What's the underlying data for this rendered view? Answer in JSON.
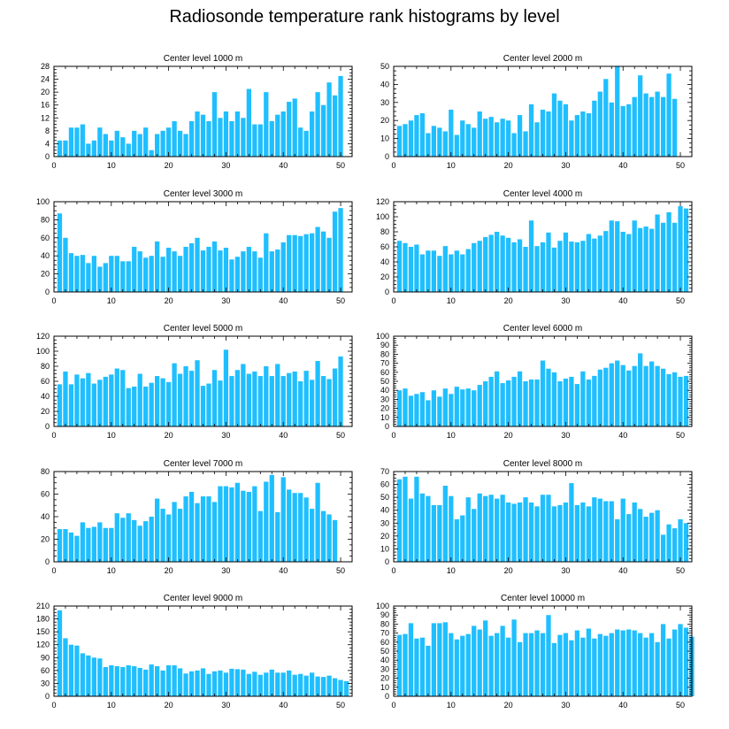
{
  "title": "Radiosonde temperature rank histograms by level",
  "colors": {
    "bar": "#1fbfff",
    "axis": "#000000",
    "background": "#ffffff"
  },
  "chart_data": [
    {
      "type": "bar",
      "title": "Center level 1000 m",
      "xlim": [
        0,
        52
      ],
      "ylim": [
        0,
        28
      ],
      "xticks": [
        0,
        10,
        20,
        30,
        40,
        50
      ],
      "yticks": [
        0,
        4,
        8,
        12,
        16,
        20,
        24,
        28
      ],
      "values": [
        5,
        5,
        9,
        9,
        10,
        4,
        5,
        9,
        7,
        5,
        8,
        6,
        4,
        8,
        7,
        9,
        2,
        7,
        8,
        9,
        11,
        8,
        7,
        11,
        14,
        13,
        11,
        20,
        12,
        14,
        11,
        14,
        12,
        21,
        10,
        10,
        20,
        11,
        13,
        14,
        17,
        18,
        9,
        8,
        14,
        20,
        16,
        23,
        19,
        25
      ]
    },
    {
      "type": "bar",
      "title": "Center level 2000 m",
      "xlim": [
        0,
        52
      ],
      "ylim": [
        0,
        50
      ],
      "xticks": [
        0,
        10,
        20,
        30,
        40,
        50
      ],
      "yticks": [
        0,
        10,
        20,
        30,
        40,
        50
      ],
      "values": [
        17,
        18,
        20,
        23,
        24,
        13,
        17,
        16,
        14,
        26,
        12,
        20,
        18,
        16,
        25,
        21,
        22,
        19,
        21,
        20,
        13,
        23,
        14,
        29,
        19,
        26,
        25,
        35,
        31,
        29,
        20,
        23,
        25,
        24,
        31,
        36,
        43,
        30,
        50,
        28,
        29,
        33,
        45,
        35,
        33,
        36,
        33,
        46,
        32
      ]
    },
    {
      "type": "bar",
      "title": "Center level 3000 m",
      "xlim": [
        0,
        52
      ],
      "ylim": [
        0,
        100
      ],
      "xticks": [
        0,
        10,
        20,
        30,
        40,
        50
      ],
      "yticks": [
        0,
        20,
        40,
        60,
        80,
        100
      ],
      "values": [
        87,
        60,
        43,
        40,
        41,
        32,
        40,
        28,
        32,
        40,
        40,
        34,
        34,
        50,
        45,
        38,
        40,
        56,
        39,
        49,
        45,
        40,
        50,
        54,
        60,
        46,
        50,
        56,
        46,
        49,
        36,
        39,
        45,
        50,
        45,
        38,
        65,
        45,
        47,
        55,
        63,
        63,
        62,
        64,
        65,
        72,
        67,
        60,
        89,
        93
      ]
    },
    {
      "type": "bar",
      "title": "Center level 4000 m",
      "xlim": [
        0,
        52
      ],
      "ylim": [
        0,
        120
      ],
      "xticks": [
        0,
        10,
        20,
        30,
        40,
        50
      ],
      "yticks": [
        0,
        20,
        40,
        60,
        80,
        100,
        120
      ],
      "values": [
        68,
        65,
        60,
        63,
        50,
        55,
        55,
        48,
        61,
        50,
        55,
        50,
        57,
        65,
        68,
        73,
        76,
        80,
        75,
        72,
        66,
        70,
        60,
        95,
        61,
        66,
        79,
        59,
        68,
        79,
        67,
        66,
        68,
        77,
        71,
        75,
        81,
        95,
        94,
        80,
        77,
        95,
        85,
        87,
        84,
        103,
        92,
        106,
        92,
        114,
        111
      ]
    },
    {
      "type": "bar",
      "title": "Center level 5000 m",
      "xlim": [
        0,
        52
      ],
      "ylim": [
        0,
        120
      ],
      "xticks": [
        0,
        10,
        20,
        30,
        40,
        50
      ],
      "yticks": [
        0,
        20,
        40,
        60,
        80,
        100,
        120
      ],
      "values": [
        56,
        73,
        56,
        69,
        64,
        71,
        57,
        62,
        66,
        69,
        77,
        75,
        51,
        53,
        70,
        53,
        58,
        67,
        64,
        59,
        84,
        70,
        80,
        74,
        88,
        54,
        57,
        75,
        61,
        102,
        67,
        75,
        83,
        70,
        73,
        67,
        80,
        67,
        83,
        67,
        71,
        73,
        60,
        74,
        62,
        87,
        67,
        63,
        77,
        93
      ]
    },
    {
      "type": "bar",
      "title": "Center level 6000 m",
      "xlim": [
        0,
        52
      ],
      "ylim": [
        0,
        100
      ],
      "xticks": [
        0,
        10,
        20,
        30,
        40,
        50
      ],
      "yticks": [
        0,
        10,
        20,
        30,
        40,
        50,
        60,
        70,
        80,
        90,
        100
      ],
      "values": [
        40,
        42,
        34,
        36,
        38,
        29,
        40,
        33,
        42,
        36,
        44,
        41,
        42,
        40,
        46,
        50,
        55,
        61,
        48,
        51,
        55,
        61,
        50,
        52,
        52,
        73,
        64,
        60,
        50,
        53,
        55,
        47,
        61,
        52,
        56,
        63,
        65,
        70,
        73,
        68,
        62,
        67,
        81,
        67,
        72,
        67,
        64,
        58,
        60,
        55,
        56
      ]
    },
    {
      "type": "bar",
      "title": "Center level 7000 m",
      "xlim": [
        0,
        52
      ],
      "ylim": [
        0,
        80
      ],
      "xticks": [
        0,
        10,
        20,
        30,
        40,
        50
      ],
      "yticks": [
        0,
        20,
        40,
        60,
        80
      ],
      "values": [
        29,
        29,
        26,
        23,
        35,
        30,
        31,
        35,
        30,
        30,
        43,
        39,
        43,
        37,
        32,
        36,
        40,
        56,
        47,
        42,
        53,
        47,
        58,
        62,
        52,
        58,
        58,
        53,
        67,
        67,
        66,
        70,
        63,
        62,
        67,
        45,
        71,
        77,
        44,
        75,
        64,
        61,
        61,
        57,
        47,
        70,
        45,
        42,
        37
      ]
    },
    {
      "type": "bar",
      "title": "Center level 8000 m",
      "xlim": [
        0,
        52
      ],
      "ylim": [
        0,
        70
      ],
      "xticks": [
        0,
        10,
        20,
        30,
        40,
        50
      ],
      "yticks": [
        0,
        10,
        20,
        30,
        40,
        50,
        60,
        70
      ],
      "values": [
        64,
        66,
        49,
        66,
        53,
        51,
        44,
        44,
        59,
        51,
        33,
        36,
        50,
        41,
        53,
        51,
        52,
        49,
        52,
        46,
        45,
        46,
        50,
        46,
        43,
        52,
        52,
        43,
        44,
        46,
        61,
        44,
        46,
        43,
        50,
        49,
        47,
        47,
        33,
        49,
        37,
        46,
        41,
        35,
        38,
        40,
        21,
        29,
        26,
        33,
        30
      ]
    },
    {
      "type": "bar",
      "title": "Center level 9000 m",
      "xlim": [
        0,
        52
      ],
      "ylim": [
        0,
        210
      ],
      "xticks": [
        0,
        10,
        20,
        30,
        40,
        50
      ],
      "yticks": [
        0,
        30,
        60,
        90,
        120,
        150,
        180,
        210
      ],
      "values": [
        200,
        135,
        120,
        118,
        100,
        95,
        90,
        88,
        68,
        72,
        70,
        68,
        72,
        70,
        66,
        62,
        74,
        70,
        60,
        72,
        72,
        65,
        53,
        58,
        60,
        65,
        52,
        58,
        60,
        55,
        64,
        63,
        62,
        52,
        57,
        50,
        55,
        62,
        55,
        55,
        60,
        50,
        52,
        48,
        55,
        46,
        45,
        48,
        42,
        38,
        35
      ]
    },
    {
      "type": "bar",
      "title": "Center level 10000 m",
      "xlim": [
        0,
        52
      ],
      "ylim": [
        0,
        100
      ],
      "xticks": [
        0,
        10,
        20,
        30,
        40,
        50
      ],
      "yticks": [
        0,
        10,
        20,
        30,
        40,
        50,
        60,
        70,
        80,
        90,
        100
      ],
      "values": [
        68,
        69,
        81,
        64,
        65,
        56,
        81,
        81,
        82,
        70,
        63,
        67,
        69,
        78,
        74,
        84,
        67,
        70,
        78,
        65,
        85,
        60,
        70,
        70,
        73,
        70,
        90,
        59,
        68,
        70,
        62,
        73,
        65,
        75,
        64,
        69,
        67,
        70,
        74,
        73,
        74,
        73,
        70,
        65,
        70,
        60,
        80,
        64,
        74,
        80,
        76,
        66
      ]
    }
  ]
}
